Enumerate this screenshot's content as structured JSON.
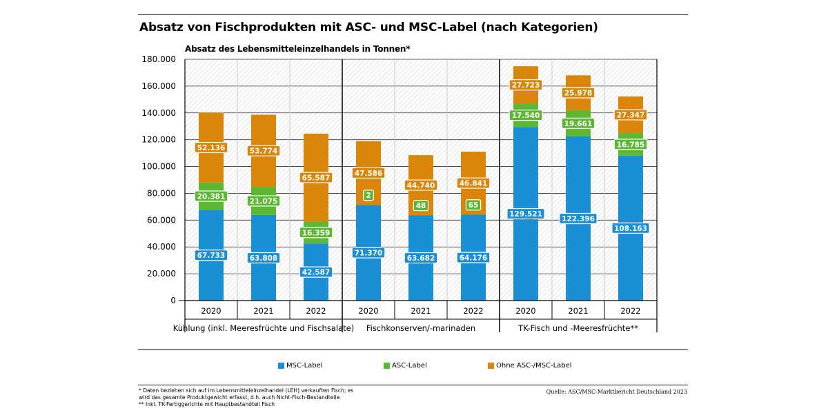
{
  "chart_data": {
    "type": "bar",
    "stacked": true,
    "title": "Absatz von Fischprodukten mit ASC- und MSC-Label (nach Kategorien)",
    "subtitle": "Absatz des Lebensmitteleinzelhandels in Tonnen*",
    "ylim": [
      0,
      180000
    ],
    "yticks": [
      "0",
      "20.000",
      "40.000",
      "60.000",
      "80.000",
      "100.000",
      "120.000",
      "140.000",
      "160.000",
      "180.000"
    ],
    "groups": [
      {
        "label": "Kühlung (inkl. Meeresfrüchte und Fischsalate)",
        "categories": [
          "2020",
          "2021",
          "2022"
        ]
      },
      {
        "label": "Fischkonserven/-marinaden",
        "categories": [
          "2020",
          "2021",
          "2022"
        ]
      },
      {
        "label": "TK-Fisch und -Meeresfrüchte**",
        "categories": [
          "2020",
          "2021",
          "2022"
        ]
      }
    ],
    "series": [
      {
        "name": "MSC-Label",
        "color": "#1a8fd6",
        "values": [
          67733,
          63808,
          42587,
          71370,
          63682,
          64176,
          129521,
          122396,
          108163
        ],
        "labels": [
          "67.733",
          "63.808",
          "42.587",
          "71.370",
          "63.682",
          "64.176",
          "129.521",
          "122.396",
          "108.163"
        ]
      },
      {
        "name": "ASC-Label",
        "color": "#5cb833",
        "values": [
          20381,
          21075,
          16359,
          2,
          48,
          65,
          17540,
          19661,
          16785
        ],
        "labels": [
          "20.381",
          "21.075",
          "16.359",
          "2",
          "48",
          "65",
          "17.540",
          "19.661",
          "16.785"
        ]
      },
      {
        "name": "Ohne ASC-/MSC-Label",
        "color": "#d9860b",
        "values": [
          52136,
          53774,
          65587,
          47586,
          44740,
          46841,
          27723,
          25978,
          27347
        ],
        "labels": [
          "52.136",
          "53.774",
          "65.587",
          "47.586",
          "44.740",
          "46.841",
          "27.723",
          "25.978",
          "27.347"
        ]
      }
    ]
  },
  "legend": [
    {
      "label": "MSC-Label",
      "color": "#1a8fd6"
    },
    {
      "label": "ASC-Label",
      "color": "#5cb833"
    },
    {
      "label": "Ohne ASC-/MSC-Label",
      "color": "#d9860b"
    }
  ],
  "footnotes": {
    "line1": "* Daten beziehen sich auf im Lebensmitteleinzelhandel (LEH) verkauften Fisch; es",
    "line2": "wird das gesamte Produktgewicht erfasst, d.h. auch Nicht-Fisch-Bestandteile",
    "line3": "** Inkl. TK-Fertiggerichte mit Hauptbestandteil Fisch"
  },
  "source": "Quelle: ASC/MSC-Marktbericht Deutschland 2023"
}
